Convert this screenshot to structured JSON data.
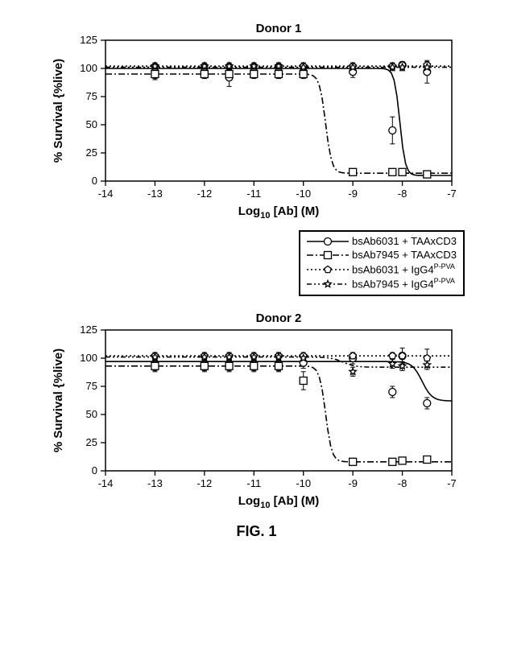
{
  "fig_caption": "FIG. 1",
  "legend": {
    "items": [
      {
        "label_html": "bsAb6031 + TAAxCD3",
        "marker": "circle",
        "dash": "solid"
      },
      {
        "label_html": "bsAb7945 + TAAxCD3",
        "marker": "square",
        "dash": "dashdot"
      },
      {
        "label_html": "bsAb6031 + IgG4<sup>P-PVA</sup>",
        "marker": "pentagon",
        "dash": "dot"
      },
      {
        "label_html": "bsAb7945 + IgG4<sup>P-PVA</sup>",
        "marker": "star",
        "dash": "dashdot2"
      }
    ]
  },
  "charts": [
    {
      "title": "Donor 1",
      "ylabel": "% Survival {%live)",
      "xlabel_prefix": "Log",
      "xlabel_sub": "10",
      "xlabel_suffix": " [Ab] (M)",
      "xlim": [
        -14,
        -7
      ],
      "xticks": [
        -14,
        -13,
        -12,
        -11,
        -10,
        -9,
        -8,
        -7
      ],
      "ylim": [
        0,
        125
      ],
      "yticks": [
        0,
        25,
        50,
        75,
        100,
        125
      ],
      "background_color": "#ffffff",
      "axis_color": "#000000",
      "line_width": 1.6,
      "title_fontsize": 15,
      "label_fontsize": 15,
      "tick_fontsize": 13,
      "series": [
        {
          "id": "s1",
          "marker": "circle",
          "dash": "solid",
          "x": [
            -13,
            -12,
            -11.5,
            -11,
            -10.5,
            -10,
            -9,
            -8.2,
            -8,
            -7.5
          ],
          "y": [
            97,
            97,
            92,
            97,
            97,
            97,
            97,
            45,
            103,
            97
          ],
          "err": [
            7,
            5,
            8,
            5,
            4,
            4,
            5,
            12,
            3,
            10
          ],
          "curve": {
            "type": "sigmoid",
            "top": 100,
            "bottom": 5,
            "mid": -8.05,
            "slope": 18
          }
        },
        {
          "id": "s2",
          "marker": "square",
          "dash": "dashdot",
          "x": [
            -13,
            -12,
            -11.5,
            -11,
            -10.5,
            -10,
            -9,
            -8.2,
            -8,
            -7.5
          ],
          "y": [
            95,
            95,
            95,
            95,
            95,
            95,
            8,
            8,
            8,
            6
          ],
          "err": [
            4,
            4,
            4,
            4,
            4,
            4,
            2,
            2,
            2,
            2
          ],
          "curve": {
            "type": "sigmoid",
            "top": 95,
            "bottom": 7,
            "mid": -9.55,
            "slope": 16
          }
        },
        {
          "id": "s3",
          "marker": "pentagon",
          "dash": "dot",
          "x": [
            -13,
            -12,
            -11.5,
            -11,
            -10.5,
            -10,
            -9,
            -8.2,
            -8,
            -7.5
          ],
          "y": [
            102,
            102,
            102,
            102,
            102,
            102,
            102,
            102,
            103,
            103
          ],
          "err": [
            3,
            3,
            3,
            3,
            3,
            3,
            3,
            3,
            3,
            3
          ],
          "curve": {
            "type": "flat",
            "level": 102
          }
        },
        {
          "id": "s4",
          "marker": "star",
          "dash": "dashdot2",
          "x": [
            -13,
            -12,
            -11.5,
            -11,
            -10.5,
            -10,
            -9,
            -8.2,
            -8,
            -7.5
          ],
          "y": [
            102,
            102,
            102,
            102,
            102,
            101,
            101,
            101,
            101,
            101
          ],
          "err": [
            3,
            3,
            3,
            3,
            3,
            3,
            3,
            3,
            3,
            3
          ],
          "curve": {
            "type": "flat",
            "level": 101
          }
        }
      ]
    },
    {
      "title": "Donor 2",
      "ylabel": "% Survival {%live)",
      "xlabel_prefix": "Log",
      "xlabel_sub": "10",
      "xlabel_suffix": " [Ab] (M)",
      "xlim": [
        -14,
        -7
      ],
      "xticks": [
        -14,
        -13,
        -12,
        -11,
        -10,
        -9,
        -8,
        -7
      ],
      "ylim": [
        0,
        125
      ],
      "yticks": [
        0,
        25,
        50,
        75,
        100,
        125
      ],
      "background_color": "#ffffff",
      "axis_color": "#000000",
      "line_width": 1.6,
      "title_fontsize": 15,
      "label_fontsize": 15,
      "tick_fontsize": 13,
      "series": [
        {
          "id": "s1",
          "marker": "circle",
          "dash": "solid",
          "x": [
            -13,
            -12,
            -11.5,
            -11,
            -10.5,
            -10,
            -9,
            -8.2,
            -8,
            -7.5
          ],
          "y": [
            94,
            94,
            94,
            94,
            94,
            96,
            100,
            70,
            102,
            60
          ],
          "err": [
            5,
            5,
            5,
            5,
            5,
            5,
            5,
            5,
            7,
            5
          ],
          "curve": {
            "type": "sigmoid",
            "top": 97,
            "bottom": 62,
            "mid": -7.6,
            "slope": 10
          }
        },
        {
          "id": "s2",
          "marker": "square",
          "dash": "dashdot",
          "x": [
            -13,
            -12,
            -11.5,
            -11,
            -10.5,
            -10,
            -9,
            -8.2,
            -8,
            -7.5
          ],
          "y": [
            93,
            93,
            93,
            93,
            93,
            80,
            8,
            8,
            9,
            10
          ],
          "err": [
            5,
            5,
            5,
            5,
            5,
            8,
            3,
            2,
            2,
            2
          ],
          "curve": {
            "type": "sigmoid",
            "top": 93,
            "bottom": 8,
            "mid": -9.55,
            "slope": 16
          }
        },
        {
          "id": "s3",
          "marker": "pentagon",
          "dash": "dot",
          "x": [
            -13,
            -12,
            -11.5,
            -11,
            -10.5,
            -10,
            -9,
            -8.2,
            -8,
            -7.5
          ],
          "y": [
            102,
            102,
            102,
            102,
            102,
            102,
            102,
            102,
            102,
            100
          ],
          "err": [
            3,
            3,
            3,
            3,
            3,
            3,
            3,
            3,
            3,
            8
          ],
          "curve": {
            "type": "flat",
            "level": 102
          }
        },
        {
          "id": "s4",
          "marker": "star",
          "dash": "dashdot2",
          "x": [
            -13,
            -12,
            -11.5,
            -11,
            -10.5,
            -10,
            -9,
            -8.2,
            -8,
            -7.5
          ],
          "y": [
            101,
            101,
            101,
            101,
            101,
            100,
            88,
            95,
            93,
            94
          ],
          "err": [
            3,
            3,
            3,
            3,
            3,
            3,
            4,
            4,
            4,
            4
          ],
          "curve": {
            "type": "sigmoid",
            "top": 101,
            "bottom": 92,
            "mid": -9.2,
            "slope": 8
          }
        }
      ]
    }
  ]
}
